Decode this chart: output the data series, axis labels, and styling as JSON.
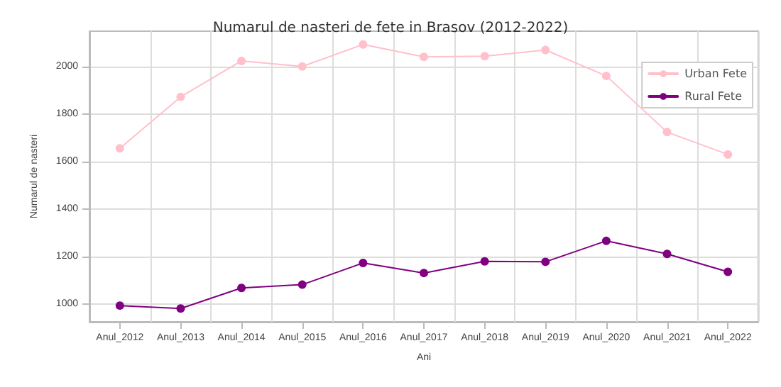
{
  "chart_data": {
    "type": "line",
    "title": "Numarul de nasteri de fete in Brasov (2012-2022)",
    "xlabel": "Ani",
    "ylabel": "Numarul de nasteri",
    "categories": [
      "Anul_2012",
      "Anul_2013",
      "Anul_2014",
      "Anul_2015",
      "Anul_2016",
      "Anul_2017",
      "Anul_2018",
      "Anul_2019",
      "Anul_2020",
      "Anul_2021",
      "Anul_2022"
    ],
    "series": [
      {
        "name": "Urban Fete",
        "color": "#ffc0cb",
        "values": [
          1656,
          1872,
          2023,
          2000,
          2092,
          2040,
          2043,
          2069,
          1960,
          1724,
          1630
        ]
      },
      {
        "name": "Rural Fete",
        "color": "#800080",
        "values": [
          995,
          983,
          1069,
          1083,
          1174,
          1132,
          1181,
          1179,
          1267,
          1212,
          1137
        ]
      }
    ],
    "ylim": [
      927,
      2148
    ],
    "yticks": [
      1000,
      1200,
      1400,
      1600,
      1800,
      2000
    ],
    "grid": true,
    "legend": "top right",
    "marker": "circle",
    "line_style": "solid"
  }
}
